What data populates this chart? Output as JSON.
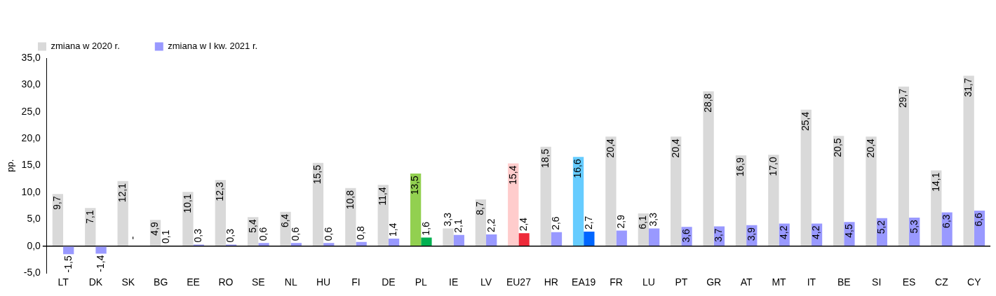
{
  "chart_data": {
    "type": "bar",
    "ylabel": "pp.",
    "legend": "top left",
    "categories": [
      "LT",
      "DK",
      "SK",
      "BG",
      "EE",
      "RO",
      "SE",
      "NL",
      "HU",
      "FI",
      "DE",
      "PL",
      "IE",
      "LV",
      "EU27",
      "HR",
      "EA19",
      "FR",
      "LU",
      "PT",
      "GR",
      "AT",
      "MT",
      "IT",
      "BE",
      "SI",
      "ES",
      "CZ",
      "CY"
    ],
    "ylim": [
      -5,
      35
    ],
    "yticks": [
      {
        "value": -5,
        "label": "-5,0"
      },
      {
        "value": 0,
        "label": "0,0"
      },
      {
        "value": 5,
        "label": "5,0"
      },
      {
        "value": 10,
        "label": "10,0"
      },
      {
        "value": 15,
        "label": "15,0"
      },
      {
        "value": 20,
        "label": "20,0"
      },
      {
        "value": 25,
        "label": "25,0"
      },
      {
        "value": 30,
        "label": "30,0"
      },
      {
        "value": 35,
        "label": "35,0"
      }
    ],
    "series": [
      {
        "name": "zmiana w 2020 r.",
        "color": "#d9d9d9",
        "colors": [
          "#d9d9d9",
          "#d9d9d9",
          "#d9d9d9",
          "#d9d9d9",
          "#d9d9d9",
          "#d9d9d9",
          "#d9d9d9",
          "#d9d9d9",
          "#d9d9d9",
          "#d9d9d9",
          "#d9d9d9",
          "#92d050",
          "#d9d9d9",
          "#d9d9d9",
          "#ffcccc",
          "#d9d9d9",
          "#66ccff",
          "#d9d9d9",
          "#d9d9d9",
          "#d9d9d9",
          "#d9d9d9",
          "#d9d9d9",
          "#d9d9d9",
          "#d9d9d9",
          "#d9d9d9",
          "#d9d9d9",
          "#d9d9d9",
          "#d9d9d9",
          "#d9d9d9"
        ],
        "values": [
          9.7,
          7.1,
          12.1,
          4.9,
          10.1,
          12.3,
          5.4,
          6.4,
          15.5,
          10.8,
          11.4,
          13.5,
          3.3,
          8.7,
          15.4,
          18.5,
          16.6,
          20.4,
          6.1,
          20.4,
          28.8,
          16.9,
          17.0,
          25.4,
          20.5,
          20.4,
          29.7,
          14.1,
          31.7
        ],
        "value_labels": [
          "9,7",
          "7,1",
          "12,1",
          "4,9",
          "10,1",
          "12,3",
          "5,4",
          "6,4",
          "15,5",
          "10,8",
          "11,4",
          "13,5",
          "3,3",
          "8,7",
          "15,4",
          "18,5",
          "16,6",
          "20,4",
          "6,1",
          "20,4",
          "28,8",
          "16,9",
          "17,0",
          "25,4",
          "20,5",
          "20,4",
          "29,7",
          "14,1",
          "31,7"
        ]
      },
      {
        "name": "zmiana w I kw. 2021 r.",
        "color": "#9999ff",
        "colors": [
          "#9999ff",
          "#9999ff",
          "#9999ff",
          "#9999ff",
          "#9999ff",
          "#9999ff",
          "#9999ff",
          "#9999ff",
          "#9999ff",
          "#9999ff",
          "#9999ff",
          "#00b050",
          "#9999ff",
          "#9999ff",
          "#ee2a3a",
          "#9999ff",
          "#0066ff",
          "#9999ff",
          "#9999ff",
          "#9999ff",
          "#9999ff",
          "#9999ff",
          "#9999ff",
          "#9999ff",
          "#9999ff",
          "#9999ff",
          "#9999ff",
          "#9999ff",
          "#9999ff"
        ],
        "values": [
          -1.5,
          -1.4,
          null,
          0.1,
          0.3,
          0.3,
          0.6,
          0.6,
          0.6,
          0.8,
          1.4,
          1.6,
          2.1,
          2.2,
          2.4,
          2.6,
          2.7,
          2.9,
          3.3,
          3.6,
          3.7,
          3.9,
          4.2,
          4.2,
          4.5,
          5.2,
          5.3,
          6.3,
          6.6
        ],
        "value_labels": [
          "-1,5",
          "-1,4",
          "-",
          "0,1",
          "0,3",
          "0,3",
          "0,6",
          "0,6",
          "0,6",
          "0,8",
          "1,4",
          "1,6",
          "2,1",
          "2,2",
          "2,4",
          "2,6",
          "2,7",
          "2,9",
          "3,3",
          "3,6",
          "3,7",
          "3,9",
          "4,2",
          "4,2",
          "4,5",
          "5,2",
          "5,3",
          "6,3",
          "6,6"
        ]
      }
    ]
  }
}
